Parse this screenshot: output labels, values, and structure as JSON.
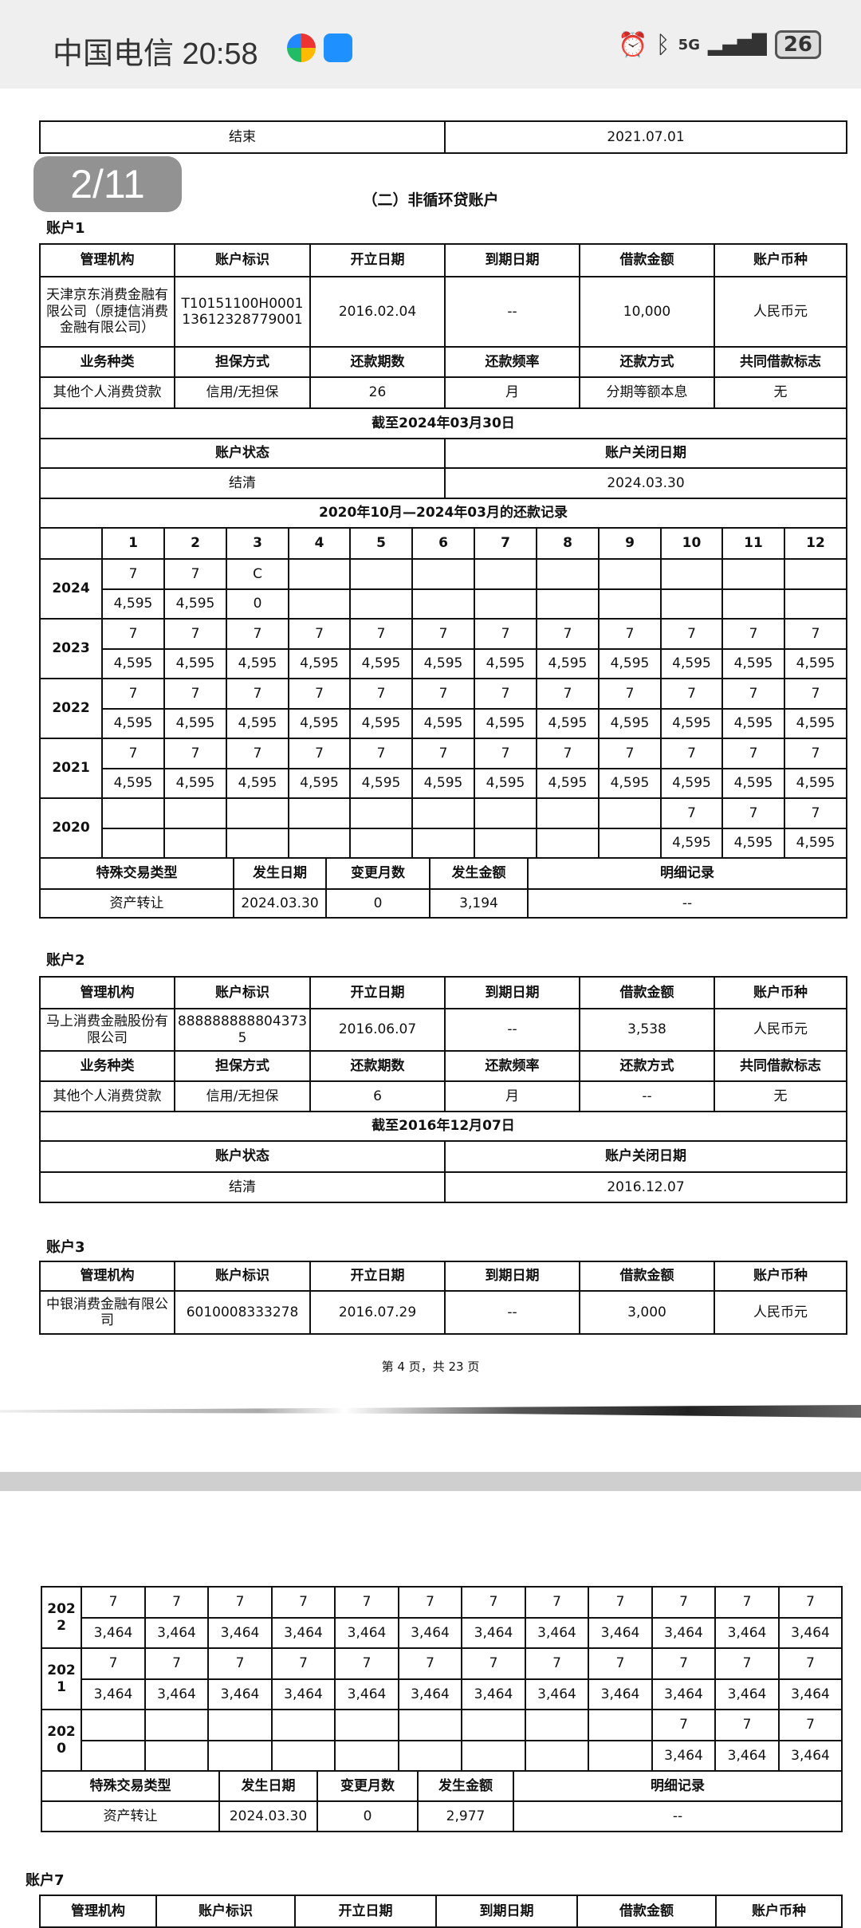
{
  "status_bar": {
    "carrier_time": "中国电信 20:58",
    "network": "5G",
    "battery": "26",
    "icons": [
      "alarm-icon",
      "bluetooth-icon",
      "signal-icon",
      "battery-icon"
    ]
  },
  "viewer": {
    "page_counter": "2/11"
  },
  "page1": {
    "top_row": [
      "结束",
      "2021.07.01"
    ],
    "section_title": "（二）非循环贷账户",
    "account1": {
      "label": "账户1",
      "header": [
        "管理机构",
        "账户标识",
        "开立日期",
        "到期日期",
        "借款金额",
        "账户币种"
      ],
      "values": [
        "天津京东消费金融有限公司（原捷信消费金融有限公司）",
        "T10151100H0001 13612328779001",
        "2016.02.04",
        "--",
        "10,000",
        "人民币元"
      ],
      "header2": [
        "业务种类",
        "担保方式",
        "还款期数",
        "还款频率",
        "还款方式",
        "共同借款标志"
      ],
      "values2": [
        "其他个人消费贷款",
        "信用/无担保",
        "26",
        "月",
        "分期等额本息",
        "无"
      ],
      "as_of": "截至2024年03月30日",
      "status_header": [
        "账户状态",
        "账户关闭日期"
      ],
      "status_values": [
        "结清",
        "2024.03.30"
      ],
      "record_title": "2020年10月—2024年03月的还款记录",
      "months": [
        "1",
        "2",
        "3",
        "4",
        "5",
        "6",
        "7",
        "8",
        "9",
        "10",
        "11",
        "12"
      ],
      "years": [
        {
          "year": "2024",
          "status": [
            "7",
            "7",
            "C",
            "",
            "",
            "",
            "",
            "",
            "",
            "",
            "",
            ""
          ],
          "amount": [
            "4,595",
            "4,595",
            "0",
            "",
            "",
            "",
            "",
            "",
            "",
            "",
            "",
            ""
          ]
        },
        {
          "year": "2023",
          "status": [
            "7",
            "7",
            "7",
            "7",
            "7",
            "7",
            "7",
            "7",
            "7",
            "7",
            "7",
            "7"
          ],
          "amount": [
            "4,595",
            "4,595",
            "4,595",
            "4,595",
            "4,595",
            "4,595",
            "4,595",
            "4,595",
            "4,595",
            "4,595",
            "4,595",
            "4,595"
          ]
        },
        {
          "year": "2022",
          "status": [
            "7",
            "7",
            "7",
            "7",
            "7",
            "7",
            "7",
            "7",
            "7",
            "7",
            "7",
            "7"
          ],
          "amount": [
            "4,595",
            "4,595",
            "4,595",
            "4,595",
            "4,595",
            "4,595",
            "4,595",
            "4,595",
            "4,595",
            "4,595",
            "4,595",
            "4,595"
          ]
        },
        {
          "year": "2021",
          "status": [
            "7",
            "7",
            "7",
            "7",
            "7",
            "7",
            "7",
            "7",
            "7",
            "7",
            "7",
            "7"
          ],
          "amount": [
            "4,595",
            "4,595",
            "4,595",
            "4,595",
            "4,595",
            "4,595",
            "4,595",
            "4,595",
            "4,595",
            "4,595",
            "4,595",
            "4,595"
          ]
        },
        {
          "year": "2020",
          "status": [
            "",
            "",
            "",
            "",
            "",
            "",
            "",
            "",
            "",
            "7",
            "7",
            "7"
          ],
          "amount": [
            "",
            "",
            "",
            "",
            "",
            "",
            "",
            "",
            "",
            "4,595",
            "4,595",
            "4,595"
          ]
        }
      ],
      "special_header": [
        "特殊交易类型",
        "发生日期",
        "变更月数",
        "发生金额",
        "明细记录"
      ],
      "special_values": [
        "资产转让",
        "2024.03.30",
        "0",
        "3,194",
        "--"
      ]
    },
    "account2": {
      "label": "账户2",
      "header": [
        "管理机构",
        "账户标识",
        "开立日期",
        "到期日期",
        "借款金额",
        "账户币种"
      ],
      "values": [
        "马上消费金融股份有限公司",
        "8888888888043735",
        "2016.06.07",
        "--",
        "3,538",
        "人民币元"
      ],
      "header2": [
        "业务种类",
        "担保方式",
        "还款期数",
        "还款频率",
        "还款方式",
        "共同借款标志"
      ],
      "values2": [
        "其他个人消费贷款",
        "信用/无担保",
        "6",
        "月",
        "--",
        "无"
      ],
      "as_of": "截至2016年12月07日",
      "status_header": [
        "账户状态",
        "账户关闭日期"
      ],
      "status_values": [
        "结清",
        "2016.12.07"
      ]
    },
    "account3": {
      "label": "账户3",
      "header": [
        "管理机构",
        "账户标识",
        "开立日期",
        "到期日期",
        "借款金额",
        "账户币种"
      ],
      "values": [
        "中银消费金融有限公司",
        "6010008333278",
        "2016.07.29",
        "--",
        "3,000",
        "人民币元"
      ]
    },
    "page_number": "第 4 页，共 23 页"
  },
  "page2": {
    "years": [
      {
        "year": "2022",
        "status": [
          "7",
          "7",
          "7",
          "7",
          "7",
          "7",
          "7",
          "7",
          "7",
          "7",
          "7",
          "7"
        ],
        "amount": [
          "3,464",
          "3,464",
          "3,464",
          "3,464",
          "3,464",
          "3,464",
          "3,464",
          "3,464",
          "3,464",
          "3,464",
          "3,464",
          "3,464"
        ]
      },
      {
        "year": "2021",
        "status": [
          "7",
          "7",
          "7",
          "7",
          "7",
          "7",
          "7",
          "7",
          "7",
          "7",
          "7",
          "7"
        ],
        "amount": [
          "3,464",
          "3,464",
          "3,464",
          "3,464",
          "3,464",
          "3,464",
          "3,464",
          "3,464",
          "3,464",
          "3,464",
          "3,464",
          "3,464"
        ]
      },
      {
        "year": "2020",
        "status": [
          "",
          "",
          "",
          "",
          "",
          "",
          "",
          "",
          "",
          "7",
          "7",
          "7"
        ],
        "amount": [
          "",
          "",
          "",
          "",
          "",
          "",
          "",
          "",
          "",
          "3,464",
          "3,464",
          "3,464"
        ]
      }
    ],
    "special_header": [
      "特殊交易类型",
      "发生日期",
      "变更月数",
      "发生金额",
      "明细记录"
    ],
    "special_values": [
      "资产转让",
      "2024.03.30",
      "0",
      "2,977",
      "--"
    ],
    "account7": {
      "label": "账户7",
      "header": [
        "管理机构",
        "账户标识",
        "开立日期",
        "到期日期",
        "借款金额",
        "账户币种"
      ]
    }
  }
}
